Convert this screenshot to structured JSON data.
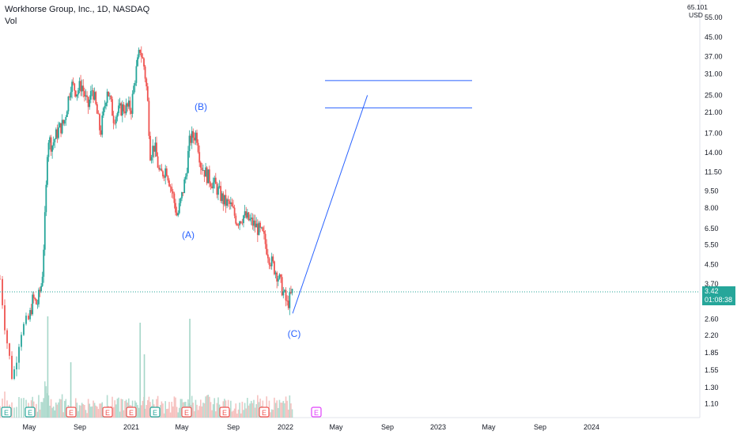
{
  "header": {
    "title": "Workhorse Group, Inc., 1D, NASDAQ",
    "volume_label": "Vol"
  },
  "price_axis": {
    "currency_label": "USD",
    "top_partial": "65.101",
    "ticks": [
      "55.00",
      "45.00",
      "37.00",
      "31.00",
      "25.00",
      "21.00",
      "17.00",
      "14.00",
      "11.50",
      "9.50",
      "8.00",
      "6.50",
      "5.50",
      "4.50",
      "3.70",
      "2.60",
      "2.20",
      "1.85",
      "1.55",
      "1.30",
      "1.10"
    ],
    "last_price": "3.42",
    "countdown": "01:08:38"
  },
  "time_axis": {
    "labels": [
      "May",
      "Sep",
      "2021",
      "May",
      "Sep",
      "2022",
      "May",
      "Sep",
      "2023",
      "May",
      "Sep",
      "2024"
    ]
  },
  "wave_labels": [
    "(A)",
    "(B)",
    "(C)"
  ],
  "earnings_markers": [
    "E",
    "E",
    "E",
    "E",
    "E",
    "E",
    "E",
    "E",
    "E",
    "E"
  ],
  "colors": {
    "up": "#26a69a",
    "down": "#ef5350",
    "drawing": "#2962ff",
    "earnings_future": "#e040fb"
  },
  "chart_data": {
    "type": "candlestick",
    "title": "Workhorse Group, Inc., 1D, NASDAQ",
    "scale": "log",
    "ylim": [
      1.0,
      65
    ],
    "price_path": [
      [
        "2020-03-25",
        3.9
      ],
      [
        "2020-04-01",
        2.3
      ],
      [
        "2020-04-10",
        1.4
      ],
      [
        "2020-04-20",
        2.3
      ],
      [
        "2020-05-01",
        2.6
      ],
      [
        "2020-05-10",
        3.2
      ],
      [
        "2020-05-20",
        3.0
      ],
      [
        "2020-06-01",
        3.8
      ],
      [
        "2020-06-10",
        8.5
      ],
      [
        "2020-06-15",
        16.5
      ],
      [
        "2020-06-25",
        15.0
      ],
      [
        "2020-07-10",
        17.5
      ],
      [
        "2020-07-25",
        19.0
      ],
      [
        "2020-08-10",
        28.0
      ],
      [
        "2020-08-25",
        26.0
      ],
      [
        "2020-09-05",
        28.0
      ],
      [
        "2020-09-20",
        22.0
      ],
      [
        "2020-10-01",
        27.0
      ],
      [
        "2020-10-20",
        17.0
      ],
      [
        "2020-11-05",
        27.0
      ],
      [
        "2020-11-20",
        20.0
      ],
      [
        "2020-12-10",
        22.0
      ],
      [
        "2021-01-01",
        22.0
      ],
      [
        "2021-01-10",
        30.0
      ],
      [
        "2021-01-22",
        40.0
      ],
      [
        "2021-02-01",
        33.0
      ],
      [
        "2021-02-08",
        25.0
      ],
      [
        "2021-02-15",
        14.0
      ],
      [
        "2021-02-25",
        15.0
      ],
      [
        "2021-03-10",
        11.0
      ],
      [
        "2021-03-25",
        12.0
      ],
      [
        "2021-04-10",
        9.0
      ],
      [
        "2021-04-20",
        7.3
      ],
      [
        "2021-05-01",
        9.0
      ],
      [
        "2021-05-10",
        11.0
      ],
      [
        "2021-05-20",
        16.0
      ],
      [
        "2021-06-05",
        17.0
      ],
      [
        "2021-06-15",
        12.5
      ],
      [
        "2021-07-01",
        11.0
      ],
      [
        "2021-07-20",
        10.0
      ],
      [
        "2021-08-10",
        8.5
      ],
      [
        "2021-08-25",
        8.2
      ],
      [
        "2021-09-10",
        7.0
      ],
      [
        "2021-09-25",
        7.4
      ],
      [
        "2021-10-10",
        7.0
      ],
      [
        "2021-10-25",
        6.6
      ],
      [
        "2021-11-10",
        6.0
      ],
      [
        "2021-11-25",
        4.8
      ],
      [
        "2021-12-15",
        4.0
      ],
      [
        "2022-01-05",
        3.0
      ],
      [
        "2022-01-18",
        3.42
      ]
    ],
    "annotations": [
      {
        "label": "(A)",
        "x": "2021-04-20",
        "y": 7.3
      },
      {
        "label": "(B)",
        "x": "2021-05-20",
        "y": 17.0
      },
      {
        "label": "(C)",
        "x": "2022-01-18",
        "y": 2.75
      }
    ],
    "projection": {
      "from": [
        "2022-01-18",
        2.75
      ],
      "to": [
        "2022-07-15",
        25.0
      ]
    },
    "target_levels": [
      29.0,
      22.0
    ],
    "last_price": 3.42
  }
}
